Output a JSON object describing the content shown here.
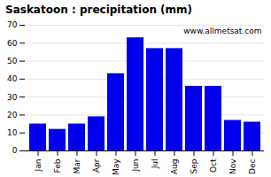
{
  "chart_data": {
    "type": "bar",
    "title": "Saskatoon : precipitation (mm)",
    "categories": [
      "Jan",
      "Feb",
      "Mar",
      "Apr",
      "May",
      "Jun",
      "Jul",
      "Aug",
      "Sep",
      "Oct",
      "Nov",
      "Dec"
    ],
    "values": [
      15,
      12,
      15,
      19,
      43,
      63,
      57,
      57,
      36,
      36,
      17,
      16
    ],
    "color": "#0000ee",
    "ylim": [
      0,
      70
    ],
    "yticks": [
      0,
      10,
      20,
      30,
      40,
      50,
      60,
      70
    ],
    "grid": true,
    "annotations": [
      "www.allmetsat.com"
    ]
  }
}
